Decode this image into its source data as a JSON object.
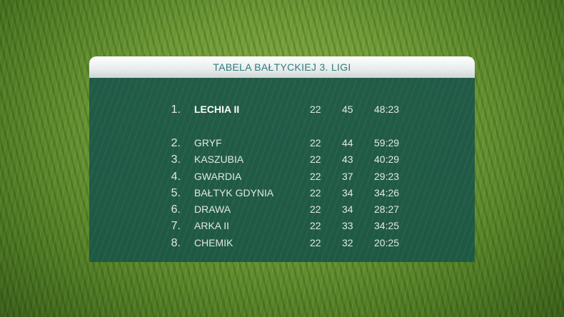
{
  "title": "TABELA BAŁTYCKIEJ 3. LIGI",
  "rows": [
    {
      "rank": "1.",
      "team": "LECHIA II",
      "played": "22",
      "points": "45",
      "goals": "48:23"
    },
    {
      "rank": "2.",
      "team": "GRYF",
      "played": "22",
      "points": "44",
      "goals": "59:29"
    },
    {
      "rank": "3.",
      "team": "KASZUBIA",
      "played": "22",
      "points": "43",
      "goals": "40:29"
    },
    {
      "rank": "4.",
      "team": "GWARDIA",
      "played": "22",
      "points": "37",
      "goals": "29:23"
    },
    {
      "rank": "5.",
      "team": "BAŁTYK GDYNIA",
      "played": "22",
      "points": "34",
      "goals": "34:26"
    },
    {
      "rank": "6.",
      "team": "DRAWA",
      "played": "22",
      "points": "34",
      "goals": "28:27"
    },
    {
      "rank": "7.",
      "team": "ARKA II",
      "played": "22",
      "points": "33",
      "goals": "34:25"
    },
    {
      "rank": "8.",
      "team": "CHEMIK",
      "played": "22",
      "points": "32",
      "goals": "20:25"
    }
  ],
  "colors": {
    "title": "#2d7c80",
    "panel": "#1f5a48",
    "text": "#e6ece8"
  }
}
